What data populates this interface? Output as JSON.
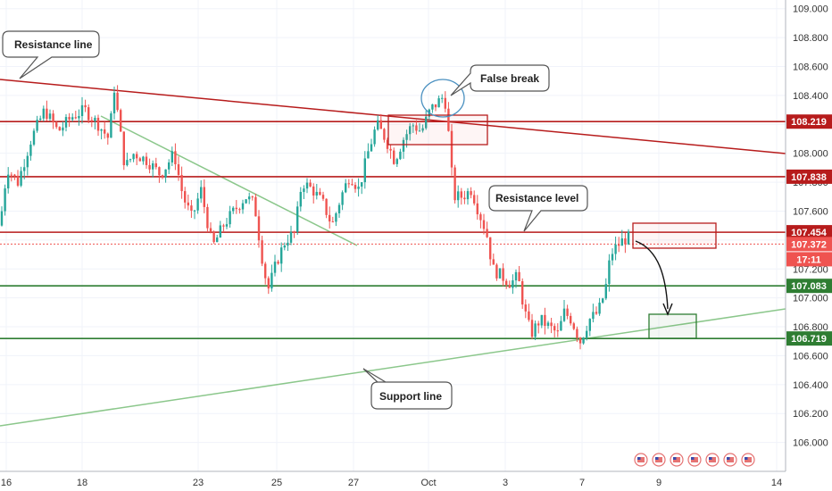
{
  "chart_data": {
    "type": "candlestick",
    "ylim": [
      105.8,
      109.06
    ],
    "y_ticks": [
      106.0,
      106.2,
      106.4,
      106.6,
      106.8,
      107.0,
      107.2,
      107.4,
      107.6,
      107.8,
      108.0,
      108.2,
      108.4,
      108.6,
      108.8,
      109.0
    ],
    "y_tick_labels": [
      "106.000",
      "106.200",
      "106.400",
      "106.600",
      "106.800",
      "107.000",
      "107.200",
      "107.400",
      "107.600",
      "107.800",
      "108.000",
      "108.200",
      "108.400",
      "108.600",
      "108.800",
      "109.000"
    ],
    "x_ticks": [
      "16",
      "18",
      "23",
      "25",
      "27",
      "Oct",
      "3",
      "7",
      "9",
      "14"
    ],
    "grid": true,
    "price_labels": [
      {
        "label": "108.219",
        "value": 108.219,
        "color": "#b71c1c"
      },
      {
        "label": "107.838",
        "value": 107.838,
        "color": "#b71c1c"
      },
      {
        "label": "107.454",
        "value": 107.454,
        "color": "#b71c1c"
      },
      {
        "label": "107.372",
        "value": 107.372,
        "color": "#ef5350"
      },
      {
        "label": "17:11",
        "value": null,
        "color": "#ef5350"
      },
      {
        "label": "107.083",
        "value": 107.083,
        "color": "#2e7d32"
      },
      {
        "label": "106.719",
        "value": 106.719,
        "color": "#2e7d32"
      }
    ],
    "horizontal_levels": [
      108.219,
      107.838,
      107.454,
      107.083,
      106.719
    ],
    "current_price": 107.372,
    "annotations": [
      "Resistance line",
      "False break",
      "Resistance level",
      "Support line"
    ],
    "colors": {
      "up": "#26a69a",
      "down": "#ef5350",
      "resistance": "#b71c1c",
      "support": "#2e7d32",
      "trend_light": "#8bc78b"
    }
  }
}
